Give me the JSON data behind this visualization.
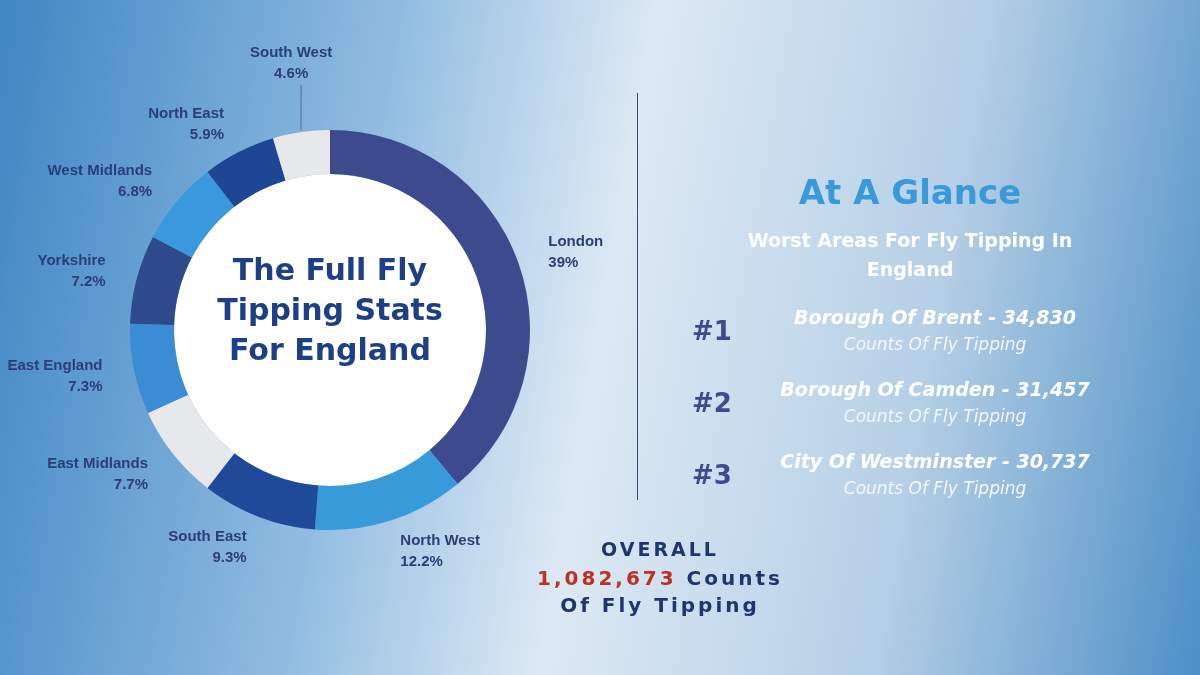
{
  "chart_data": [
    {
      "type": "donut",
      "title": "The Full Fly Tipping Stats For England",
      "categories": [
        "London",
        "North West",
        "South East",
        "East Midlands",
        "East England",
        "Yorkshire",
        "West Midlands",
        "North East",
        "South West"
      ],
      "values": [
        39,
        12.2,
        9.3,
        7.7,
        7.3,
        7.2,
        6.8,
        5.9,
        4.6
      ],
      "value_labels": [
        "39%",
        "12.2%",
        "9.3%",
        "7.7%",
        "7.3%",
        "7.2%",
        "6.8%",
        "5.9%",
        "4.6%"
      ],
      "colors": [
        "#3d4b8e",
        "#379ad9",
        "#1f4a9a",
        "#e6e8ec",
        "#3a8cd5",
        "#2f4a8c",
        "#3a98dc",
        "#1d4694",
        "#e6e8ec"
      ]
    },
    {
      "type": "other",
      "title": "At A Glance",
      "subtitle": "Worst Areas For Fly Tipping In England",
      "annotations": [
        "#1",
        "Borough Of Brent - 34,830",
        "Counts Of Fly Tipping",
        "#2",
        "Borough Of Camden - 31,457",
        "Counts Of Fly Tipping",
        "#3",
        "City Of Westminster - 30,737",
        "Counts Of Fly Tipping",
        "OVERALL",
        "1,082,673 Counts Of Fly Tipping"
      ]
    }
  ]
}
